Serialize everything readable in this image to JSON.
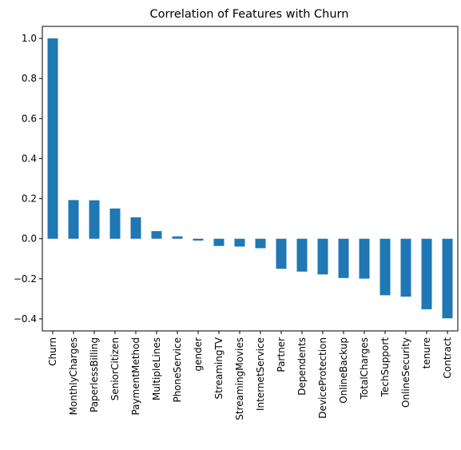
{
  "chart_data": {
    "type": "bar",
    "title": "Correlation of Features with Churn",
    "xlabel": "",
    "ylabel": "",
    "categories": [
      "Churn",
      "MonthlyCharges",
      "PaperlessBilling",
      "SeniorCitizen",
      "PaymentMethod",
      "MultipleLines",
      "PhoneService",
      "gender",
      "StreamingTV",
      "StreamingMovies",
      "InternetService",
      "Partner",
      "Dependents",
      "DeviceProtection",
      "OnlineBackup",
      "TotalCharges",
      "TechSupport",
      "OnlineSecurity",
      "tenure",
      "Contract"
    ],
    "values": [
      1.0,
      0.193,
      0.192,
      0.151,
      0.107,
      0.038,
      0.012,
      -0.009,
      -0.036,
      -0.039,
      -0.047,
      -0.15,
      -0.164,
      -0.178,
      -0.196,
      -0.199,
      -0.282,
      -0.289,
      -0.352,
      -0.397
    ],
    "ylim": [
      -0.46,
      1.06
    ],
    "yticks": [
      -0.4,
      -0.2,
      0.0,
      0.2,
      0.4,
      0.6,
      0.8,
      1.0
    ],
    "ytick_labels": [
      "−0.4",
      "−0.2",
      "0.0",
      "0.2",
      "0.4",
      "0.6",
      "0.8",
      "1.0"
    ],
    "grid": false,
    "legend": "none",
    "bar_color": "#1f77b4"
  }
}
